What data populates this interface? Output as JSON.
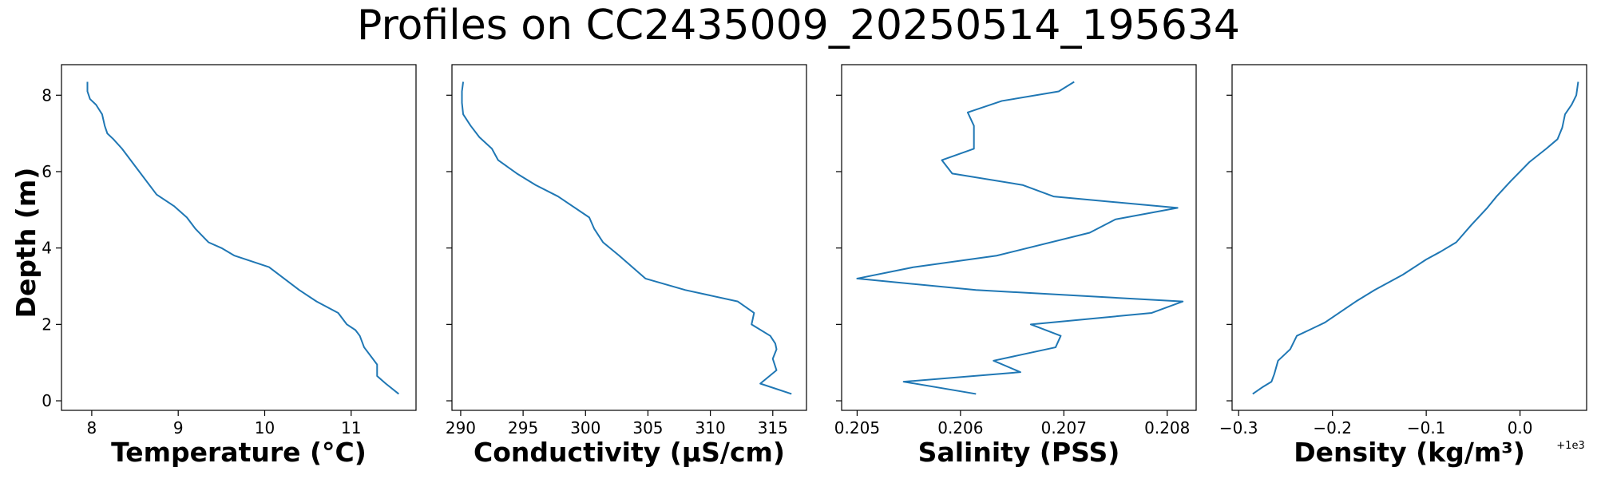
{
  "figure": {
    "title": "Profiles on CC2435009_20250514_195634",
    "y_label": "Depth (m)",
    "offset_text": "+1e3"
  },
  "chart_data": [
    {
      "type": "line",
      "xlabel": "Temperature (°C)",
      "ylabel": "Depth (m)",
      "xlim": [
        7.65,
        11.75
      ],
      "ylim": [
        8.8,
        -0.25
      ],
      "x_ticks": [
        8,
        9,
        10,
        11
      ],
      "x_tick_labels": [
        "8",
        "9",
        "10",
        "11"
      ],
      "y_ticks": [
        0,
        2,
        4,
        6,
        8
      ],
      "y_tick_labels": [
        "0",
        "2",
        "4",
        "6",
        "8"
      ],
      "line_color": "#1f77b4",
      "series": [
        {
          "x": [
            11.55,
            11.4,
            11.3,
            11.3,
            11.25,
            11.15,
            11.1,
            11.05,
            10.95,
            10.85,
            10.6,
            10.4,
            10.05,
            9.65,
            9.5,
            9.35,
            9.2,
            9.1,
            8.95,
            8.75,
            8.55,
            8.35,
            8.25,
            8.18,
            8.15,
            8.12,
            8.05,
            7.98,
            7.95,
            7.95
          ],
          "y": [
            0.18,
            0.45,
            0.65,
            0.95,
            1.1,
            1.4,
            1.7,
            1.85,
            2.0,
            2.3,
            2.6,
            2.9,
            3.5,
            3.8,
            4.0,
            4.15,
            4.5,
            4.8,
            5.1,
            5.4,
            6.0,
            6.6,
            6.85,
            7.0,
            7.2,
            7.5,
            7.75,
            7.9,
            8.1,
            8.35
          ]
        }
      ]
    },
    {
      "type": "line",
      "xlabel": "Conductivity (µS/cm)",
      "xlim": [
        289.3,
        317.7
      ],
      "ylim": [
        8.8,
        -0.25
      ],
      "x_ticks": [
        290,
        295,
        300,
        305,
        310,
        315
      ],
      "x_tick_labels": [
        "290",
        "295",
        "300",
        "305",
        "310",
        "315"
      ],
      "line_color": "#1f77b4",
      "series": [
        {
          "x": [
            316.5,
            314.0,
            315.3,
            315.0,
            315.3,
            315.2,
            314.8,
            313.3,
            313.5,
            312.2,
            308.0,
            304.8,
            302.7,
            301.4,
            300.7,
            300.3,
            297.8,
            296.0,
            294.5,
            293.0,
            292.5,
            291.5,
            290.8,
            290.2,
            290.1,
            290.1,
            290.2
          ],
          "y": [
            0.18,
            0.45,
            0.8,
            1.1,
            1.35,
            1.5,
            1.7,
            2.0,
            2.3,
            2.6,
            2.9,
            3.2,
            3.8,
            4.15,
            4.5,
            4.8,
            5.35,
            5.65,
            5.95,
            6.3,
            6.6,
            6.9,
            7.2,
            7.5,
            7.8,
            8.1,
            8.35
          ]
        }
      ]
    },
    {
      "type": "line",
      "xlabel": "Salinity (PSS)",
      "xlim": [
        0.20485,
        0.20828
      ],
      "ylim": [
        8.8,
        -0.25
      ],
      "x_ticks": [
        0.205,
        0.206,
        0.207,
        0.208
      ],
      "x_tick_labels": [
        "0.205",
        "0.206",
        "0.207",
        "0.208"
      ],
      "line_color": "#1f77b4",
      "series": [
        {
          "x": [
            0.20615,
            0.20545,
            0.20658,
            0.20632,
            0.20692,
            0.20697,
            0.20668,
            0.20785,
            0.20815,
            0.20615,
            0.205,
            0.20555,
            0.20635,
            0.20725,
            0.2075,
            0.2081,
            0.2069,
            0.2066,
            0.20592,
            0.20582,
            0.20613,
            0.20613,
            0.20607,
            0.2064,
            0.20695,
            0.2071
          ],
          "y": [
            0.18,
            0.5,
            0.75,
            1.05,
            1.4,
            1.7,
            2.0,
            2.3,
            2.6,
            2.9,
            3.2,
            3.5,
            3.8,
            4.4,
            4.75,
            5.05,
            5.35,
            5.65,
            5.95,
            6.3,
            6.6,
            7.2,
            7.55,
            7.85,
            8.1,
            8.35
          ]
        }
      ]
    },
    {
      "type": "line",
      "xlabel": "Density (kg/m³)",
      "axis_offset": "+1e3",
      "xlim": [
        -0.307,
        0.071
      ],
      "ylim": [
        8.8,
        -0.25
      ],
      "x_ticks": [
        -0.3,
        -0.2,
        -0.1,
        0.0
      ],
      "x_tick_labels": [
        "−0.3",
        "−0.2",
        "−0.1",
        "0.0"
      ],
      "line_color": "#1f77b4",
      "series": [
        {
          "x": [
            -0.285,
            -0.275,
            -0.265,
            -0.262,
            -0.258,
            -0.245,
            -0.238,
            -0.225,
            -0.208,
            -0.175,
            -0.155,
            -0.125,
            -0.1,
            -0.085,
            -0.068,
            -0.052,
            -0.035,
            -0.025,
            -0.01,
            0.01,
            0.028,
            0.04,
            0.045,
            0.048,
            0.055,
            0.06,
            0.062
          ],
          "y": [
            0.18,
            0.35,
            0.5,
            0.7,
            1.05,
            1.35,
            1.7,
            1.85,
            2.05,
            2.6,
            2.9,
            3.3,
            3.7,
            3.9,
            4.15,
            4.6,
            5.05,
            5.35,
            5.75,
            6.25,
            6.6,
            6.85,
            7.15,
            7.5,
            7.75,
            8.0,
            8.35
          ]
        }
      ]
    }
  ]
}
